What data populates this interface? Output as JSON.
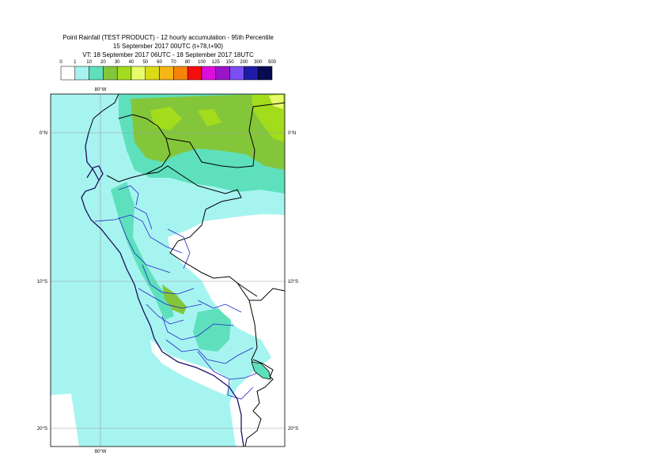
{
  "title": {
    "line1": "Point Rainfall (TEST PRODUCT) - 12 hourly accumulation - 95th Percentile",
    "line2": "15 September 2017 00UTC (t+78,t+90)",
    "line3": "VT: 18 September 2017 06UTC - 18 September 2017 18UTC"
  },
  "legend": {
    "thresholds": [
      "0",
      "1",
      "10",
      "20",
      "30",
      "40",
      "50",
      "60",
      "70",
      "80",
      "100",
      "125",
      "150",
      "200",
      "300",
      "500"
    ],
    "colors": [
      "#ffffff",
      "#a6f4f0",
      "#5ee0bc",
      "#84c63a",
      "#a2dc1c",
      "#e7fb6a",
      "#dcdc16",
      "#f6b616",
      "#f6830a",
      "#f50e0e",
      "#dc0edc",
      "#9a14c8",
      "#7a4ef0",
      "#1c1ca8",
      "#0a0a50"
    ]
  },
  "map": {
    "lon_labels": {
      "top": "80°W",
      "bottom": "80°W"
    },
    "lat_labels": [
      {
        "left": "0°N",
        "right": "0°N"
      },
      {
        "left": "10°S",
        "right": "10°S"
      },
      {
        "left": "20°S",
        "right": "20°S"
      }
    ],
    "colors": {
      "ocean": "#a6f4f0",
      "coast": "#1c1060",
      "border": "#000000",
      "region": "#2222cc",
      "grid": "#9a9a9a"
    }
  }
}
